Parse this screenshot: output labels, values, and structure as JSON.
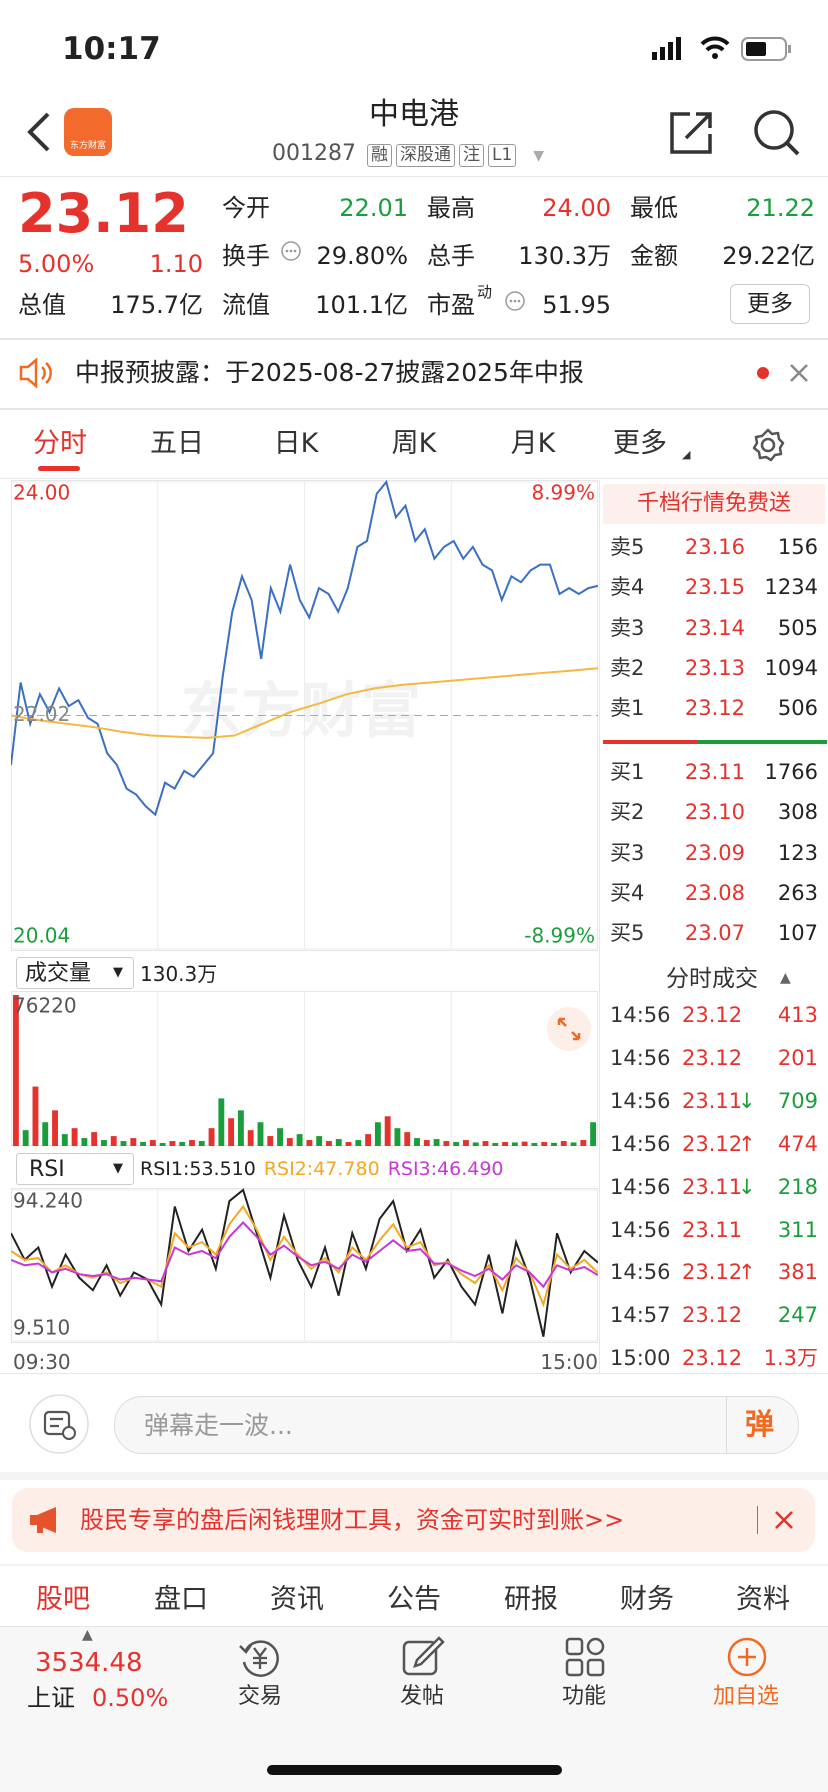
{
  "status_bar": {
    "time": "10:17"
  },
  "header": {
    "logo_text": "东方财富",
    "title": "中电港",
    "code": "001287",
    "tags": [
      "融",
      "深股通",
      "注",
      "L1"
    ]
  },
  "quote": {
    "price": "23.12",
    "change_pct": "5.00%",
    "change": "1.10",
    "open_label": "今开",
    "open": "22.01",
    "high_label": "最高",
    "high": "24.00",
    "low_label": "最低",
    "low": "21.22",
    "turnover_label": "换手",
    "turnover": "29.80%",
    "volume_label": "总手",
    "volume": "130.3万",
    "amount_label": "金额",
    "amount": "29.22亿",
    "mcap_label": "总值",
    "mcap": "175.7亿",
    "float_label": "流值",
    "float": "101.1亿",
    "pe_label": "市盈",
    "pe_sup": "动",
    "pe": "51.95",
    "more": "更多"
  },
  "notice": {
    "text": "中报预披露：于2025-08-27披露2025年中报"
  },
  "chart_tabs": [
    "分时",
    "五日",
    "日K",
    "周K",
    "月K",
    "更多"
  ],
  "price_chart": {
    "type": "line",
    "watermark": "东方财富",
    "ylim": [
      20.04,
      24.0
    ],
    "yticks": [
      {
        "value": 24.0,
        "label": "24.00"
      },
      {
        "value": 22.02,
        "label": "22.02"
      },
      {
        "value": 20.04,
        "label": "20.04"
      }
    ],
    "y2lim": [
      -8.99,
      8.99
    ],
    "y2ticks": [
      {
        "value": 8.99,
        "label": "8.99%"
      },
      {
        "value": -8.99,
        "label": "-8.99%"
      }
    ],
    "series": [
      {
        "color": "#3a6fc4",
        "values": [
          21.6,
          22.3,
          21.95,
          22.2,
          22.05,
          22.25,
          22.1,
          22.15,
          22.0,
          21.95,
          21.7,
          21.6,
          21.4,
          21.35,
          21.25,
          21.18,
          21.45,
          21.4,
          21.55,
          21.5,
          21.6,
          21.7,
          22.35,
          22.9,
          23.2,
          23.0,
          22.5,
          23.1,
          22.9,
          23.3,
          23.0,
          22.85,
          23.1,
          23.05,
          22.9,
          23.1,
          23.45,
          23.5,
          23.9,
          24.0,
          23.7,
          23.8,
          23.5,
          23.6,
          23.35,
          23.45,
          23.5,
          23.35,
          23.45,
          23.3,
          23.25,
          23.0,
          23.2,
          23.15,
          23.25,
          23.3,
          23.3,
          23.05,
          23.1,
          23.05,
          23.1,
          23.12
        ]
      },
      {
        "color": "#f5b942",
        "values": [
          22.02,
          21.98,
          21.95,
          21.92,
          21.88,
          21.85,
          21.84,
          21.83,
          21.85,
          21.95,
          22.05,
          22.12,
          22.2,
          22.25,
          22.28,
          22.3,
          22.32,
          22.34,
          22.36,
          22.38,
          22.4,
          22.42
        ]
      }
    ]
  },
  "volume_chart": {
    "type": "bar",
    "name": "成交量",
    "total": "130.3万",
    "ylim": [
      0,
      76220
    ],
    "yticks": [
      76220
    ],
    "colors": [
      "#e5322d",
      "#1a9e3c"
    ],
    "values": [
      76220,
      8000,
      30000,
      12000,
      18000,
      6000,
      9000,
      4000,
      7000,
      3000,
      5000,
      2500,
      4000,
      2000,
      3000,
      1500,
      2500,
      2000,
      3000,
      2500,
      9000,
      24000,
      14000,
      18000,
      8000,
      12000,
      5000,
      9000,
      4000,
      6000,
      3000,
      5000,
      2500,
      3500,
      2000,
      3000,
      6000,
      12000,
      15000,
      9000,
      7000,
      4000,
      3000,
      3500,
      2500,
      2000,
      3000,
      1800,
      2500,
      1500,
      2000,
      1800,
      2200,
      1500,
      2000,
      1600,
      2500,
      1800,
      3000,
      12000
    ]
  },
  "rsi_chart": {
    "type": "line",
    "name": "RSI",
    "ylim": [
      9.51,
      94.24
    ],
    "yticks": [
      {
        "value": 94.24,
        "label": "94.240"
      },
      {
        "value": 9.51,
        "label": "9.510"
      }
    ],
    "x_labels": [
      "09:30",
      "15:00"
    ],
    "series": [
      {
        "name": "RSI1:53.510",
        "color": "#222222",
        "values": [
          70,
          55,
          62,
          40,
          58,
          45,
          38,
          52,
          35,
          48,
          44,
          30,
          85,
          60,
          72,
          50,
          88,
          94.24,
          70,
          45,
          80,
          55,
          40,
          62,
          35,
          70,
          50,
          78,
          88,
          60,
          72,
          45,
          55,
          40,
          30,
          58,
          25,
          65,
          45,
          12,
          70,
          48,
          60,
          53.51
        ]
      },
      {
        "name": "RSI2:47.780",
        "color": "#f5a623",
        "values": [
          60,
          55,
          56,
          48,
          52,
          47,
          45,
          48,
          42,
          45,
          44,
          40,
          70,
          62,
          65,
          58,
          75,
          85,
          72,
          55,
          68,
          58,
          50,
          56,
          48,
          62,
          55,
          66,
          75,
          62,
          65,
          52,
          54,
          47,
          42,
          52,
          38,
          56,
          48,
          30,
          58,
          50,
          55,
          47.78
        ]
      },
      {
        "name": "RSI3:46.490",
        "color": "#c838d8",
        "values": [
          55,
          52,
          53,
          48,
          50,
          47,
          46,
          47,
          44,
          45,
          44,
          43,
          62,
          58,
          60,
          56,
          68,
          76,
          68,
          58,
          63,
          57,
          52,
          54,
          50,
          58,
          54,
          60,
          66,
          60,
          61,
          53,
          53,
          49,
          46,
          50,
          44,
          52,
          48,
          40,
          52,
          49,
          51,
          46.49
        ]
      }
    ]
  },
  "order_book": {
    "promo": "千档行情免费送",
    "sells": [
      {
        "label": "卖5",
        "price": "23.16",
        "volume": "156"
      },
      {
        "label": "卖4",
        "price": "23.15",
        "volume": "1234"
      },
      {
        "label": "卖3",
        "price": "23.14",
        "volume": "505"
      },
      {
        "label": "卖2",
        "price": "23.13",
        "volume": "1094"
      },
      {
        "label": "卖1",
        "price": "23.12",
        "volume": "506"
      }
    ],
    "buys": [
      {
        "label": "买1",
        "price": "23.11",
        "volume": "1766"
      },
      {
        "label": "买2",
        "price": "23.10",
        "volume": "308"
      },
      {
        "label": "买3",
        "price": "23.09",
        "volume": "123"
      },
      {
        "label": "买4",
        "price": "23.08",
        "volume": "263"
      },
      {
        "label": "买5",
        "price": "23.07",
        "volume": "107"
      }
    ]
  },
  "trades": {
    "title": "分时成交",
    "rows": [
      {
        "time": "14:56",
        "price": "23.12",
        "volume": "413",
        "color": "#e5322d"
      },
      {
        "time": "14:56",
        "price": "23.12",
        "volume": "201",
        "color": "#e5322d"
      },
      {
        "time": "14:56",
        "price": "23.11",
        "dir": "↓",
        "volume": "709",
        "color": "#1a9e3c"
      },
      {
        "time": "14:56",
        "price": "23.12",
        "dir": "↑",
        "volume": "474",
        "color": "#e5322d"
      },
      {
        "time": "14:56",
        "price": "23.11",
        "dir": "↓",
        "volume": "218",
        "color": "#1a9e3c"
      },
      {
        "time": "14:56",
        "price": "23.11",
        "volume": "311",
        "color": "#1a9e3c"
      },
      {
        "time": "14:56",
        "price": "23.12",
        "dir": "↑",
        "volume": "381",
        "color": "#e5322d"
      },
      {
        "time": "14:57",
        "price": "23.12",
        "volume": "247",
        "color": "#1a9e3c"
      },
      {
        "time": "15:00",
        "price": "23.12",
        "volume": "1.3万",
        "color": "#e5322d"
      }
    ]
  },
  "comment": {
    "placeholder": "弹幕走一波...",
    "button": "弹"
  },
  "banner": {
    "text": "股民专享的盘后闲钱理财工具，资金可实时到账>>"
  },
  "section_tabs": [
    "股吧",
    "盘口",
    "资讯",
    "公告",
    "研报",
    "财务",
    "资料"
  ],
  "bottom_bar": {
    "index_value": "3534.48",
    "index_name": "上证",
    "index_change": "0.50%",
    "items": [
      "交易",
      "发帖",
      "功能",
      "加自选"
    ]
  }
}
